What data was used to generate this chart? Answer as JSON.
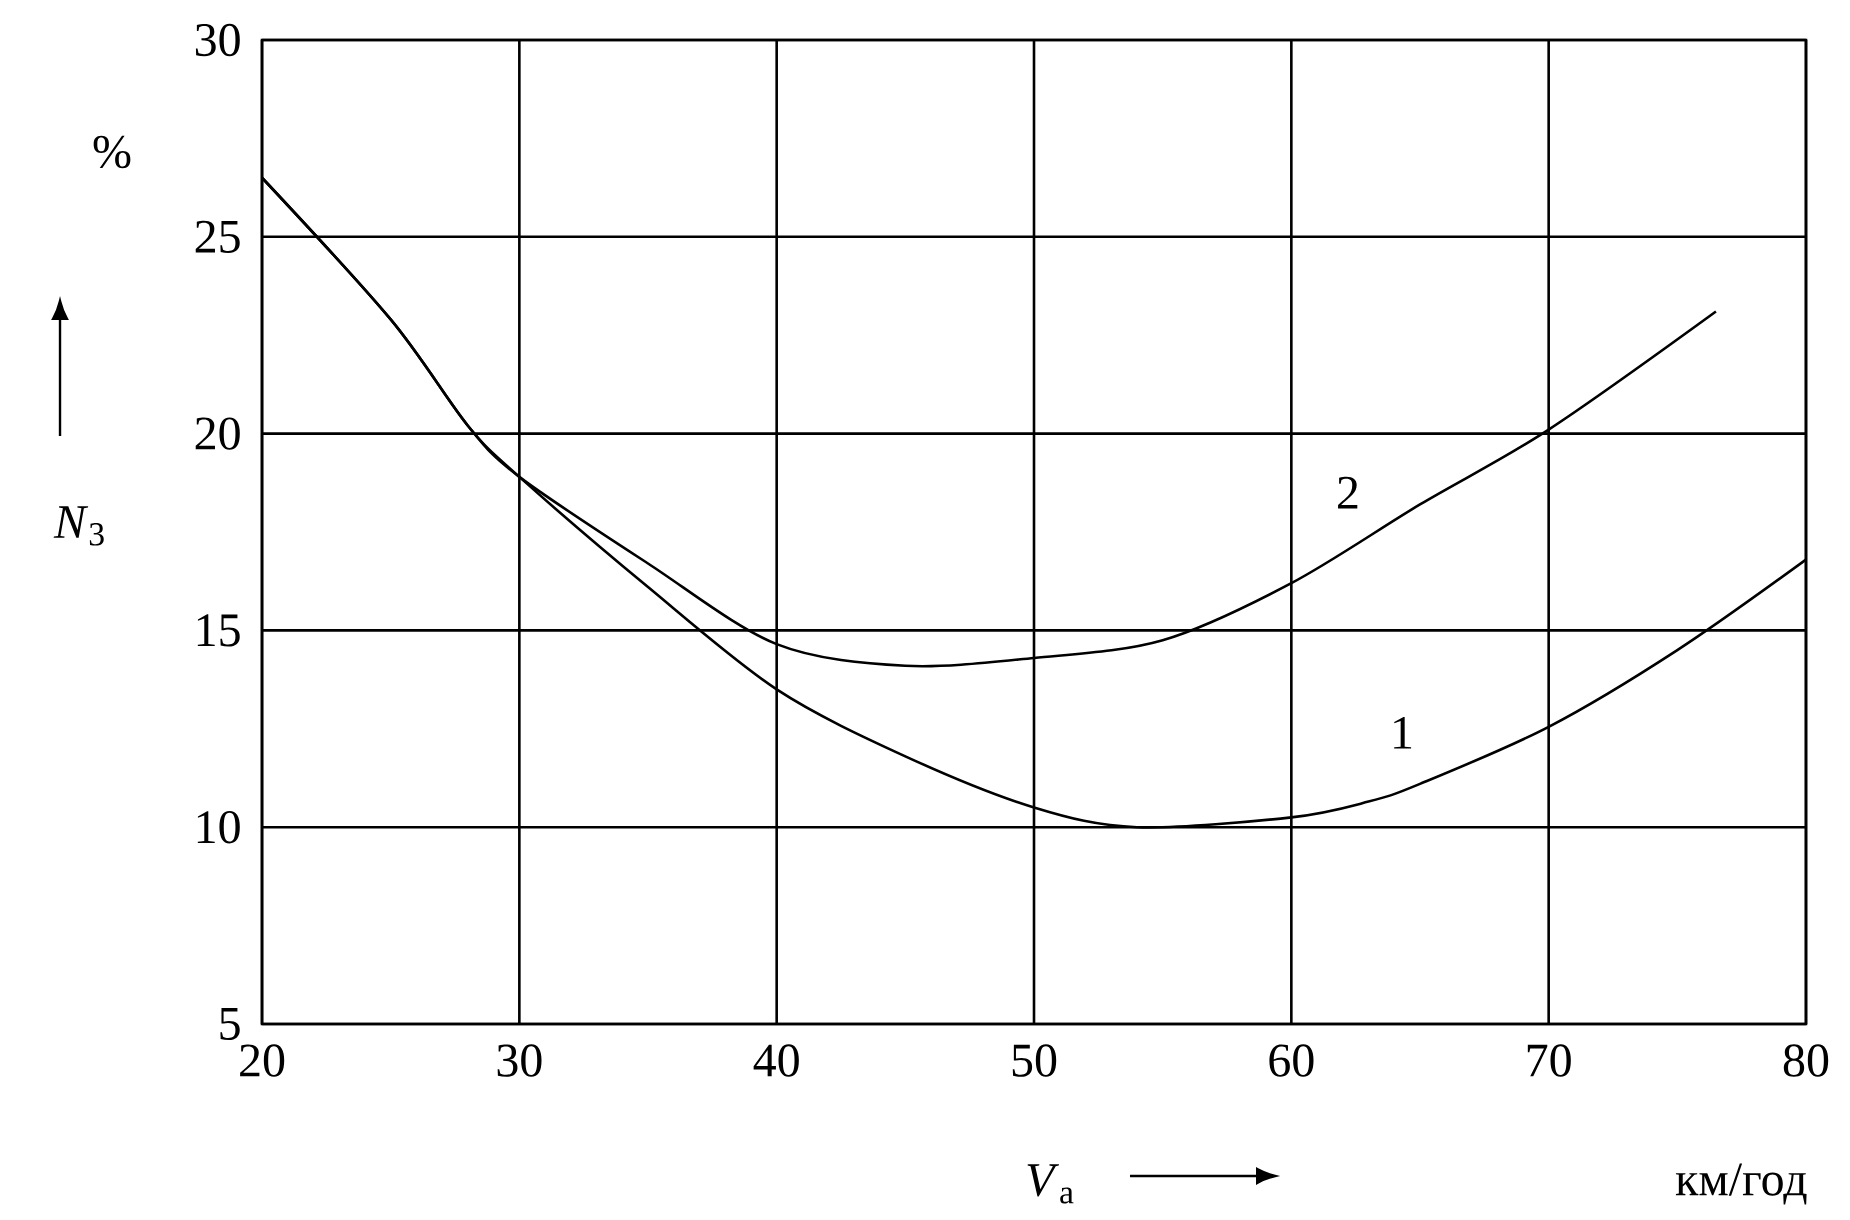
{
  "chart_data": {
    "type": "line",
    "xlabel": "*V*$_{a}$",
    "ylabel": "*N*$_{3}$",
    "x": [
      20,
      25,
      28,
      30,
      35,
      40,
      45,
      50,
      54,
      60,
      63,
      65,
      70,
      75,
      80
    ],
    "series": [
      {
        "color": "#000000",
        "values": [
          26.5,
          22.9,
          20.2,
          18.9,
          16.1,
          13.5,
          11.8,
          10.5,
          10.0,
          10.25,
          10.65,
          11.1,
          12.55,
          14.5,
          16.8
        ]
      },
      {
        "color": "#000000",
        "x": [
          20,
          25,
          28,
          30,
          35,
          40,
          45,
          50,
          55,
          60,
          65,
          70,
          76.5
        ],
        "values": [
          26.5,
          22.9,
          20.2,
          18.9,
          16.7,
          14.65,
          14.1,
          14.3,
          14.75,
          16.2,
          18.2,
          20.1,
          23.1
        ]
      }
    ],
    "annotations": [
      {
        "text": "1",
        "x": 64.3,
        "y": 12.4
      },
      {
        "text": "2",
        "x": 62.2,
        "y": 18.5
      },
      "%",
      "км/год"
    ],
    "xlim": [
      20,
      80
    ],
    "ylim": [
      5,
      30
    ],
    "xticks": [
      20,
      30,
      40,
      50,
      60,
      70,
      80
    ],
    "yticks": [
      5,
      10,
      15,
      20,
      25,
      30
    ],
    "grid": true,
    "marker": "none",
    "line_style": "solid"
  }
}
